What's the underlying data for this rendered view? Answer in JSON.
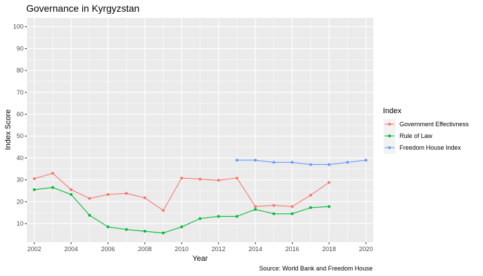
{
  "chart_data": {
    "type": "line",
    "title": "Governance in Kyrgyzstan",
    "xlabel": "Year",
    "ylabel": "Index Score",
    "caption": "Source: World Bank and Freedom House",
    "xlim": [
      2001.6,
      2020.4
    ],
    "ylim": [
      1.5,
      104
    ],
    "x_ticks": [
      "2002",
      "2004",
      "2006",
      "2008",
      "2010",
      "2012",
      "2014",
      "2016",
      "2018",
      "2020"
    ],
    "y_ticks": [
      "10",
      "20",
      "30",
      "40",
      "50",
      "60",
      "70",
      "80",
      "90",
      "100"
    ],
    "grid": true,
    "legend": {
      "title": "Index",
      "position": "right"
    },
    "series": [
      {
        "name": "Government Effectivness",
        "color": "#F8766D",
        "x": [
          2002,
          2003,
          2004,
          2005,
          2006,
          2007,
          2008,
          2009,
          2010,
          2011,
          2012,
          2013,
          2014,
          2015,
          2016,
          2017,
          2018
        ],
        "y": [
          30.5,
          33.0,
          25.5,
          21.5,
          23.3,
          23.8,
          21.8,
          16.0,
          30.8,
          30.3,
          29.8,
          30.8,
          17.8,
          18.3,
          17.8,
          23.0,
          28.8
        ]
      },
      {
        "name": "Rule of Law",
        "color": "#00BA38",
        "x": [
          2002,
          2003,
          2004,
          2005,
          2006,
          2007,
          2008,
          2009,
          2010,
          2011,
          2012,
          2013,
          2014,
          2015,
          2016,
          2017,
          2018
        ],
        "y": [
          25.5,
          26.5,
          23.3,
          13.8,
          8.5,
          7.3,
          6.5,
          5.7,
          8.5,
          12.3,
          13.3,
          13.3,
          16.5,
          14.5,
          14.5,
          17.3,
          17.8
        ]
      },
      {
        "name": "Freedom House Index",
        "color": "#619CFF",
        "x": [
          2013,
          2014,
          2015,
          2016,
          2017,
          2018,
          2019,
          2020
        ],
        "y": [
          39,
          39,
          38,
          38,
          37,
          37,
          38,
          39
        ]
      }
    ]
  }
}
